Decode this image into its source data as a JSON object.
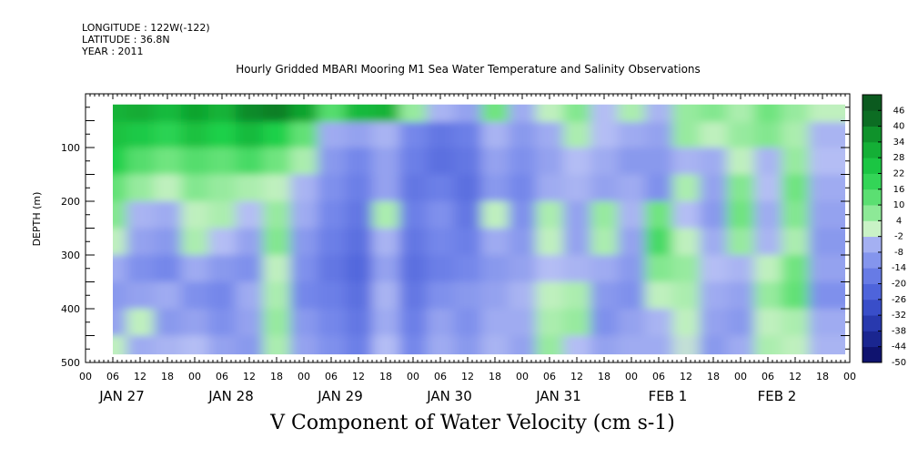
{
  "header": {
    "longitude": "LONGITUDE : 122W(-122)",
    "latitude": "LATITUDE : 36.8N",
    "year": "YEAR : 2011",
    "title": "Hourly Gridded MBARI Mooring M1 Sea Water Temperature and Salinity Observations"
  },
  "variable_label": "V Component of Water Velocity (cm s-1)",
  "chart_data": {
    "type": "heatmap",
    "title": "Hourly Gridded MBARI Mooring M1 Sea Water Temperature and Salinity Observations",
    "xlabel": "",
    "ylabel": "DEPTH (m)",
    "colorbar_label": "V Component of Water Velocity (cm s-1)",
    "x_hours_range": [
      0,
      168
    ],
    "data_hours_range": [
      6,
      167
    ],
    "x_tick_labels": [
      "00",
      "06",
      "12",
      "18",
      "00",
      "06",
      "12",
      "18",
      "00",
      "06",
      "12",
      "18",
      "00",
      "06",
      "12",
      "18",
      "00",
      "06",
      "12",
      "18",
      "00",
      "06",
      "12",
      "18",
      "00",
      "06",
      "12",
      "18",
      "00"
    ],
    "day_labels": [
      "JAN 27",
      "JAN 28",
      "JAN 29",
      "JAN 30",
      "JAN 31",
      "FEB 1",
      "FEB 2"
    ],
    "y_range": [
      0,
      500
    ],
    "y_inverted": true,
    "data_depth_range": [
      20,
      485
    ],
    "y_ticks": [
      100,
      200,
      300,
      400,
      500
    ],
    "y_tick_labels": [
      "100",
      "200",
      "300",
      "400",
      "500"
    ],
    "colorbar_levels": [
      -50,
      -44,
      -38,
      -32,
      -26,
      -20,
      -14,
      -8,
      -2,
      4,
      10,
      16,
      22,
      28,
      34,
      40,
      46
    ],
    "colorbar_level_labels": [
      "-50",
      "-44",
      "-38",
      "-32",
      "-26",
      "-20",
      "-14",
      "-8",
      "-2",
      "4",
      "10",
      "16",
      "22",
      "28",
      "34",
      "40",
      "46"
    ],
    "color_stops": [
      {
        "value": -50,
        "color": "#0a0a5e"
      },
      {
        "value": -38,
        "color": "#1f2fa0"
      },
      {
        "value": -26,
        "color": "#4158d6"
      },
      {
        "value": -14,
        "color": "#7487ea"
      },
      {
        "value": -2,
        "color": "#b4bdf4"
      },
      {
        "value": 1,
        "color": "#c9f2c6"
      },
      {
        "value": 10,
        "color": "#6fe47f"
      },
      {
        "value": 22,
        "color": "#1fd04a"
      },
      {
        "value": 34,
        "color": "#10a42f"
      },
      {
        "value": 46,
        "color": "#0b5a1f"
      }
    ],
    "depth_rows": [
      30,
      75,
      125,
      175,
      225,
      275,
      325,
      375,
      425,
      475
    ],
    "time_cols_hours": [
      6,
      12,
      18,
      24,
      30,
      36,
      42,
      48,
      54,
      60,
      66,
      72,
      78,
      84,
      90,
      96,
      102,
      108,
      114,
      120,
      126,
      132,
      138,
      144,
      150,
      156,
      162
    ],
    "values": [
      [
        30,
        32,
        28,
        34,
        30,
        38,
        40,
        34,
        14,
        28,
        30,
        6,
        -4,
        -8,
        10,
        -6,
        2,
        8,
        -2,
        4,
        -4,
        6,
        8,
        4,
        10,
        6,
        2
      ],
      [
        26,
        24,
        20,
        26,
        22,
        28,
        22,
        12,
        -6,
        -8,
        -4,
        -14,
        -18,
        -16,
        -4,
        -10,
        -6,
        4,
        -2,
        -6,
        -8,
        6,
        2,
        6,
        8,
        4,
        -4
      ],
      [
        22,
        14,
        10,
        14,
        12,
        16,
        10,
        4,
        -10,
        -14,
        -8,
        -16,
        -20,
        -18,
        -8,
        -12,
        -8,
        -2,
        -6,
        -10,
        -10,
        -4,
        -6,
        2,
        -4,
        6,
        -2
      ],
      [
        12,
        6,
        2,
        8,
        6,
        4,
        2,
        -4,
        -12,
        -16,
        -8,
        -18,
        -16,
        -20,
        -10,
        -14,
        -6,
        -4,
        -8,
        -6,
        -12,
        4,
        -8,
        8,
        -2,
        10,
        -6
      ],
      [
        8,
        -4,
        -6,
        2,
        4,
        -2,
        6,
        -6,
        -14,
        -18,
        4,
        -16,
        -12,
        -18,
        2,
        -12,
        4,
        -8,
        6,
        -4,
        10,
        -2,
        -10,
        10,
        -6,
        8,
        -8
      ],
      [
        2,
        -8,
        -10,
        4,
        -2,
        -8,
        8,
        -10,
        -16,
        -20,
        -4,
        -18,
        -14,
        -16,
        -6,
        -10,
        2,
        -8,
        4,
        -8,
        16,
        2,
        -6,
        6,
        -4,
        4,
        -10
      ],
      [
        -6,
        -12,
        -14,
        -6,
        -10,
        -12,
        2,
        -12,
        -18,
        -22,
        -8,
        -20,
        -16,
        -14,
        -10,
        -8,
        -2,
        -4,
        -6,
        -10,
        8,
        6,
        -2,
        -4,
        2,
        10,
        -8
      ],
      [
        -10,
        -8,
        -6,
        -12,
        -14,
        -6,
        4,
        -14,
        -16,
        -20,
        -4,
        -18,
        -12,
        -10,
        -8,
        -4,
        2,
        4,
        -10,
        -12,
        2,
        4,
        -6,
        -8,
        6,
        12,
        -12
      ],
      [
        -8,
        2,
        -10,
        -8,
        -12,
        -8,
        6,
        -10,
        -14,
        -18,
        -6,
        -16,
        -8,
        -12,
        -6,
        -6,
        4,
        6,
        -12,
        -8,
        -4,
        2,
        -8,
        -10,
        2,
        4,
        -6
      ],
      [
        2,
        -6,
        -4,
        -2,
        -8,
        -10,
        4,
        -8,
        -12,
        -16,
        -2,
        -14,
        -6,
        -10,
        -4,
        -8,
        6,
        -2,
        -8,
        -6,
        -6,
        0,
        -10,
        -6,
        4,
        2,
        -4
      ]
    ]
  }
}
